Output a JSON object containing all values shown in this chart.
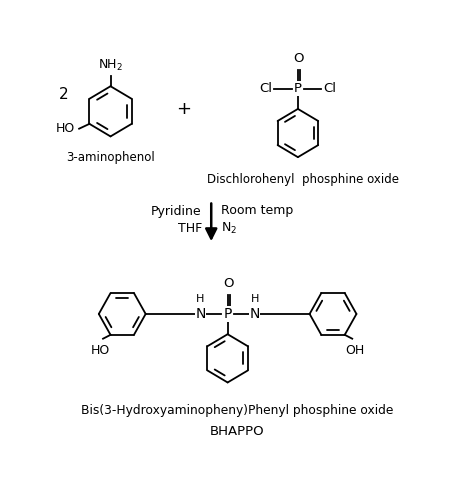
{
  "background_color": "#ffffff",
  "title_line1": "Bis(3-Hydroxyaminopheny)Phenyl phosphine oxide",
  "title_line2": "BHAPPO",
  "reactant1_label": "3-aminophenol",
  "reactant2_label": "Dischlorohenyl  phosphine oxide",
  "condition_left": "Pyridine\nTHF",
  "condition_right": "Room temp\nN₂",
  "coeff": "2",
  "plus": "+",
  "figsize": [
    4.74,
    4.88
  ],
  "dpi": 100
}
